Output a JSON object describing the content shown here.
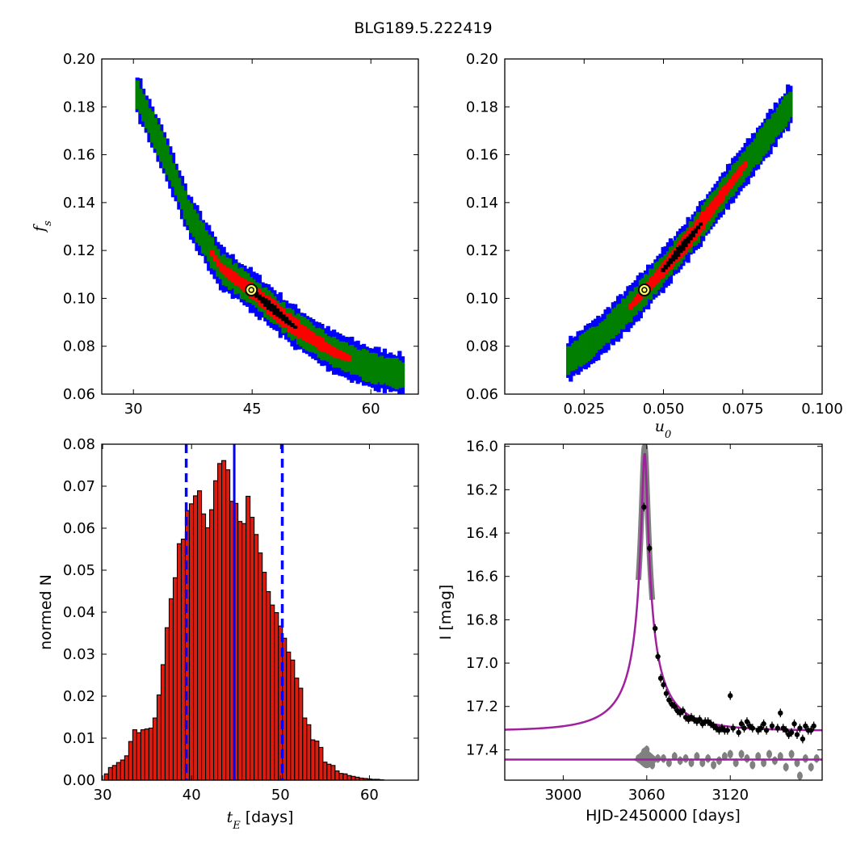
{
  "title": "BLG189.5.222419",
  "colors": {
    "blue": "#0000ff",
    "green": "#007f00",
    "red": "#ff0000",
    "black": "#000000",
    "hist_fill": "#dd1c10",
    "model": "#a020a0",
    "grey": "#808080",
    "best_fit": "#ffff66"
  },
  "chart_data": [
    {
      "id": "tE_vs_fs",
      "type": "heatmap",
      "xlabel": "",
      "ylabel": "f_s",
      "xlim": [
        26,
        66
      ],
      "ylim": [
        0.06,
        0.2
      ],
      "xticks": [
        "30",
        "45",
        "60"
      ],
      "xtick_values": [
        30,
        45,
        60
      ],
      "yticks": [
        "0.06",
        "0.08",
        "0.10",
        "0.12",
        "0.14",
        "0.16",
        "0.18",
        "0.20"
      ],
      "confidence_levels": [
        "blue",
        "green",
        "red",
        "black"
      ],
      "band_ridge": [
        [
          30.5,
          0.185
        ],
        [
          34,
          0.16
        ],
        [
          37,
          0.135
        ],
        [
          41,
          0.113
        ],
        [
          45,
          0.103
        ],
        [
          50,
          0.089
        ],
        [
          55,
          0.078
        ],
        [
          60,
          0.071
        ],
        [
          64,
          0.068
        ]
      ],
      "best_fit": {
        "x": 44.9,
        "y": 0.1035
      }
    },
    {
      "id": "u0_vs_fs",
      "type": "heatmap",
      "xlabel": "u_0",
      "ylabel": "",
      "xlim": [
        0.0,
        0.1
      ],
      "ylim": [
        0.06,
        0.2
      ],
      "xticks": [
        "0.025",
        "0.050",
        "0.075",
        "0.100"
      ],
      "xtick_values": [
        0.025,
        0.05,
        0.075,
        0.1
      ],
      "yticks": [
        "0.06",
        "0.08",
        "0.10",
        "0.12",
        "0.14",
        "0.16",
        "0.18",
        "0.20"
      ],
      "confidence_levels": [
        "blue",
        "green",
        "red",
        "black"
      ],
      "band_ridge": [
        [
          0.02,
          0.074
        ],
        [
          0.03,
          0.084
        ],
        [
          0.04,
          0.097
        ],
        [
          0.05,
          0.112
        ],
        [
          0.06,
          0.128
        ],
        [
          0.07,
          0.146
        ],
        [
          0.08,
          0.163
        ],
        [
          0.09,
          0.181
        ]
      ],
      "best_fit": {
        "x": 0.044,
        "y": 0.1035
      }
    },
    {
      "id": "tE_histogram",
      "type": "bar",
      "xlabel": "t_E  [days]",
      "ylabel": "normed N",
      "xlim": [
        29.9,
        65.5
      ],
      "ylim": [
        0.0,
        0.08
      ],
      "xticks": [
        "30",
        "40",
        "50",
        "60"
      ],
      "xtick_values": [
        30,
        40,
        50,
        60
      ],
      "yticks": [
        "0.00",
        "0.01",
        "0.02",
        "0.03",
        "0.04",
        "0.05",
        "0.06",
        "0.07",
        "0.08"
      ],
      "bin_start": 30.2,
      "bin_width": 0.455,
      "values": [
        0.0015,
        0.003,
        0.0035,
        0.0042,
        0.0048,
        0.0058,
        0.0092,
        0.012,
        0.0113,
        0.012,
        0.0122,
        0.0124,
        0.0148,
        0.0203,
        0.0275,
        0.0363,
        0.0432,
        0.0482,
        0.0563,
        0.0574,
        0.0642,
        0.0658,
        0.0677,
        0.0689,
        0.0634,
        0.0601,
        0.0644,
        0.0713,
        0.0754,
        0.0761,
        0.0739,
        0.0664,
        0.0659,
        0.0616,
        0.0611,
        0.0676,
        0.0626,
        0.0585,
        0.0541,
        0.0495,
        0.0449,
        0.0417,
        0.0399,
        0.0367,
        0.0338,
        0.0305,
        0.0286,
        0.0243,
        0.0219,
        0.0148,
        0.0132,
        0.0096,
        0.0093,
        0.0078,
        0.0043,
        0.0038,
        0.0035,
        0.0022,
        0.0016,
        0.0015,
        0.0011,
        0.0009,
        0.0007,
        0.0005,
        0.0004,
        0.0003,
        0.0002,
        0.0002,
        0.0001
      ],
      "median": 44.8,
      "bounds": [
        39.4,
        50.2
      ]
    },
    {
      "id": "light_curve",
      "type": "scatter",
      "xlabel": "HJD-2450000 [days]",
      "ylabel": "I [mag]",
      "xlim": [
        2958,
        3186
      ],
      "ylim": [
        17.54,
        15.99
      ],
      "xticks": [
        "3000",
        "3060",
        "3120"
      ],
      "xtick_values": [
        3000,
        3060,
        3120
      ],
      "yticks": [
        "16.0",
        "16.2",
        "16.4",
        "16.6",
        "16.8",
        "17.0",
        "17.2",
        "17.4"
      ],
      "ytick_values": [
        16.0,
        16.2,
        16.4,
        16.6,
        16.8,
        17.0,
        17.2,
        17.4
      ],
      "model": {
        "t0": 3058.5,
        "tE": 44.9,
        "u0": 0.044,
        "fs": 0.1035,
        "baseline": 17.312
      },
      "points": [
        [
          3058,
          16.28
        ],
        [
          3062,
          16.47
        ],
        [
          3066,
          16.84
        ],
        [
          3068,
          16.97
        ],
        [
          3070,
          17.07
        ],
        [
          3072,
          17.1
        ],
        [
          3074,
          17.14
        ],
        [
          3076,
          17.17
        ],
        [
          3078,
          17.19
        ],
        [
          3080,
          17.2
        ],
        [
          3082,
          17.22
        ],
        [
          3084,
          17.23
        ],
        [
          3086,
          17.22
        ],
        [
          3088,
          17.25
        ],
        [
          3090,
          17.26
        ],
        [
          3092,
          17.25
        ],
        [
          3094,
          17.26
        ],
        [
          3096,
          17.27
        ],
        [
          3098,
          17.26
        ],
        [
          3100,
          17.28
        ],
        [
          3102,
          17.27
        ],
        [
          3104,
          17.27
        ],
        [
          3106,
          17.28
        ],
        [
          3108,
          17.29
        ],
        [
          3110,
          17.3
        ],
        [
          3112,
          17.31
        ],
        [
          3114,
          17.3
        ],
        [
          3116,
          17.31
        ],
        [
          3118,
          17.31
        ],
        [
          3120,
          17.15
        ],
        [
          3122,
          17.3
        ],
        [
          3126,
          17.32
        ],
        [
          3128,
          17.28
        ],
        [
          3130,
          17.3
        ],
        [
          3132,
          17.27
        ],
        [
          3134,
          17.29
        ],
        [
          3136,
          17.3
        ],
        [
          3140,
          17.31
        ],
        [
          3142,
          17.3
        ],
        [
          3144,
          17.28
        ],
        [
          3146,
          17.31
        ],
        [
          3150,
          17.29
        ],
        [
          3154,
          17.3
        ],
        [
          3156,
          17.23
        ],
        [
          3158,
          17.3
        ],
        [
          3160,
          17.31
        ],
        [
          3162,
          17.33
        ],
        [
          3164,
          17.32
        ],
        [
          3166,
          17.28
        ],
        [
          3168,
          17.33
        ],
        [
          3170,
          17.3
        ],
        [
          3172,
          17.35
        ],
        [
          3174,
          17.29
        ],
        [
          3176,
          17.31
        ],
        [
          3178,
          17.31
        ],
        [
          3180,
          17.29
        ]
      ],
      "residual_baseline": 17.445,
      "residuals": [
        [
          3054,
          17.44
        ],
        [
          3056,
          17.43
        ],
        [
          3058,
          17.41
        ],
        [
          3060,
          17.4
        ],
        [
          3062,
          17.45
        ],
        [
          3064,
          17.47
        ],
        [
          3068,
          17.44
        ],
        [
          3072,
          17.44
        ],
        [
          3076,
          17.46
        ],
        [
          3080,
          17.43
        ],
        [
          3084,
          17.45
        ],
        [
          3088,
          17.44
        ],
        [
          3092,
          17.46
        ],
        [
          3096,
          17.43
        ],
        [
          3100,
          17.46
        ],
        [
          3104,
          17.44
        ],
        [
          3108,
          17.47
        ],
        [
          3112,
          17.45
        ],
        [
          3116,
          17.43
        ],
        [
          3120,
          17.42
        ],
        [
          3124,
          17.46
        ],
        [
          3128,
          17.42
        ],
        [
          3132,
          17.44
        ],
        [
          3136,
          17.47
        ],
        [
          3140,
          17.43
        ],
        [
          3144,
          17.46
        ],
        [
          3148,
          17.42
        ],
        [
          3152,
          17.45
        ],
        [
          3156,
          17.43
        ],
        [
          3160,
          17.48
        ],
        [
          3164,
          17.42
        ],
        [
          3168,
          17.46
        ],
        [
          3170,
          17.52
        ],
        [
          3174,
          17.44
        ],
        [
          3178,
          17.48
        ],
        [
          3182,
          17.44
        ]
      ]
    }
  ]
}
